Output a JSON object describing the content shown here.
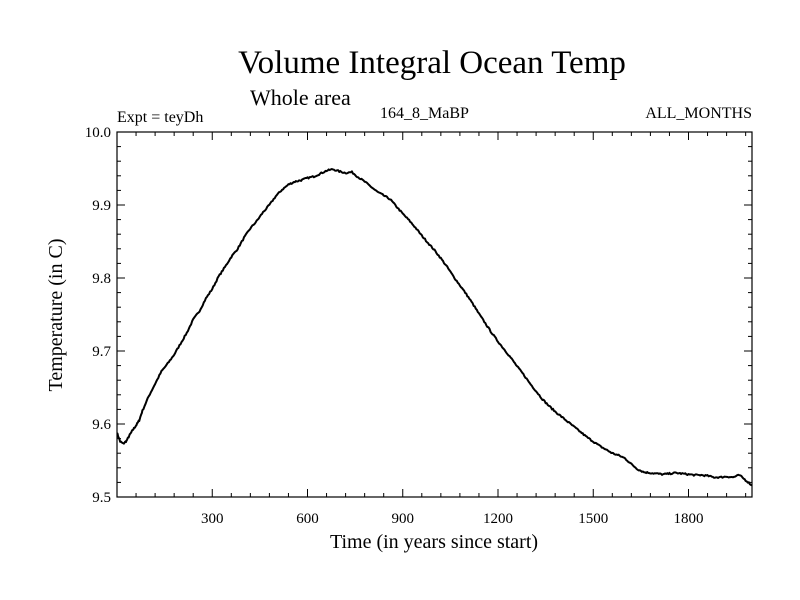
{
  "header": {
    "title": "Volume Integral Ocean Temp",
    "subtitle": "Whole area",
    "expt": "Expt = teyDh",
    "period": "164_8_MaBP",
    "months": "ALL_MONTHS"
  },
  "colors": {
    "line": "#000000",
    "axis": "#000000",
    "background": "#ffffff"
  },
  "chart_data": {
    "type": "line",
    "title": "Volume Integral Ocean Temp",
    "subtitle": "Whole area",
    "xlabel": "Time (in years since start)",
    "ylabel": "Temperature (in C)",
    "xlim": [
      0,
      2000
    ],
    "ylim": [
      9.5,
      10.0
    ],
    "xticks": [
      300,
      600,
      900,
      1200,
      1500,
      1800
    ],
    "xtick_labels": [
      "300",
      "600",
      "900",
      "1200",
      "1500",
      "1800"
    ],
    "yticks": [
      9.5,
      9.6,
      9.7,
      9.8,
      9.9,
      10.0
    ],
    "ytick_labels": [
      "9.5",
      "9.6",
      "9.7",
      "9.8",
      "9.9",
      "10.0"
    ],
    "grid": false,
    "series": [
      {
        "name": "Volume Integral Ocean Temp",
        "x": [
          0,
          10,
          20,
          30,
          40,
          50,
          60,
          70,
          80,
          100,
          120,
          140,
          160,
          180,
          200,
          220,
          240,
          260,
          280,
          300,
          320,
          340,
          360,
          380,
          400,
          420,
          440,
          460,
          480,
          500,
          520,
          540,
          560,
          580,
          600,
          620,
          640,
          660,
          680,
          700,
          720,
          740,
          760,
          780,
          800,
          820,
          840,
          860,
          880,
          900,
          920,
          940,
          960,
          980,
          1000,
          1020,
          1040,
          1060,
          1080,
          1100,
          1120,
          1140,
          1160,
          1180,
          1200,
          1220,
          1240,
          1260,
          1280,
          1300,
          1320,
          1340,
          1360,
          1380,
          1400,
          1420,
          1440,
          1460,
          1480,
          1500,
          1520,
          1540,
          1560,
          1580,
          1600,
          1620,
          1640,
          1660,
          1680,
          1700,
          1720,
          1740,
          1760,
          1780,
          1800,
          1820,
          1840,
          1860,
          1880,
          1900,
          1920,
          1940,
          1960,
          1980,
          2000
        ],
        "values": [
          9.588,
          9.576,
          9.573,
          9.577,
          9.585,
          9.592,
          9.598,
          9.605,
          9.618,
          9.638,
          9.655,
          9.672,
          9.683,
          9.695,
          9.71,
          9.725,
          9.743,
          9.755,
          9.772,
          9.785,
          9.802,
          9.815,
          9.829,
          9.84,
          9.855,
          9.868,
          9.878,
          9.89,
          9.9,
          9.912,
          9.921,
          9.928,
          9.932,
          9.934,
          9.937,
          9.939,
          9.943,
          9.947,
          9.949,
          9.946,
          9.944,
          9.945,
          9.938,
          9.932,
          9.925,
          9.918,
          9.913,
          9.908,
          9.898,
          9.888,
          9.879,
          9.869,
          9.858,
          9.848,
          9.838,
          9.827,
          9.815,
          9.802,
          9.79,
          9.778,
          9.765,
          9.751,
          9.738,
          9.725,
          9.713,
          9.702,
          9.691,
          9.679,
          9.668,
          9.656,
          9.645,
          9.634,
          9.625,
          9.617,
          9.61,
          9.603,
          9.596,
          9.589,
          9.582,
          9.576,
          9.57,
          9.565,
          9.56,
          9.557,
          9.553,
          9.545,
          9.538,
          9.534,
          9.533,
          9.532,
          9.531,
          9.532,
          9.533,
          9.532,
          9.531,
          9.53,
          9.53,
          9.529,
          9.527,
          9.527,
          9.528,
          9.527,
          9.53,
          9.523,
          9.516
        ]
      }
    ]
  }
}
